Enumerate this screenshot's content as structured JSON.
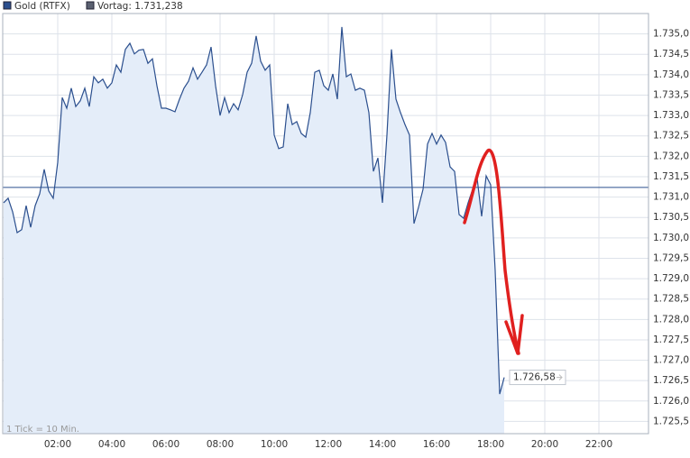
{
  "chart_data": {
    "type": "area",
    "series": [
      {
        "name": "Gold (RTFX)",
        "color": "#2b4f8e",
        "fill": "#e4edf9",
        "values": [
          1730.86,
          1730.97,
          1730.64,
          1730.13,
          1730.2,
          1730.79,
          1730.26,
          1730.79,
          1731.08,
          1731.68,
          1731.15,
          1730.97,
          1731.85,
          1733.44,
          1733.18,
          1733.67,
          1733.22,
          1733.36,
          1733.67,
          1733.22,
          1733.95,
          1733.8,
          1733.89,
          1733.67,
          1733.8,
          1734.24,
          1734.06,
          1734.62,
          1734.77,
          1734.51,
          1734.6,
          1734.62,
          1734.28,
          1734.39,
          1733.73,
          1733.18,
          1733.18,
          1733.14,
          1733.09,
          1733.4,
          1733.67,
          1733.84,
          1734.17,
          1733.89,
          1734.06,
          1734.24,
          1734.68,
          1733.73,
          1733.0,
          1733.44,
          1733.07,
          1733.29,
          1733.14,
          1733.51,
          1734.06,
          1734.28,
          1734.95,
          1734.33,
          1734.11,
          1734.24,
          1732.52,
          1732.19,
          1732.23,
          1733.29,
          1732.78,
          1732.85,
          1732.56,
          1732.47,
          1733.07,
          1734.06,
          1734.11,
          1733.73,
          1733.62,
          1734.02,
          1733.4,
          1735.17,
          1733.95,
          1734.02,
          1733.62,
          1733.67,
          1733.62,
          1733.07,
          1731.63,
          1731.96,
          1730.86,
          1732.52,
          1734.62,
          1733.4,
          1733.07,
          1732.78,
          1732.52,
          1730.35,
          1730.75,
          1731.19,
          1732.3,
          1732.56,
          1732.3,
          1732.52,
          1732.34,
          1731.74,
          1731.63,
          1730.57,
          1730.48,
          1730.86,
          1731.19,
          1731.46,
          1730.53,
          1731.52,
          1731.3,
          1729.2,
          1726.17,
          1726.58
        ],
        "value_labels": [
          null,
          null,
          null,
          null,
          null,
          null,
          null,
          null,
          null,
          null,
          null,
          null,
          null,
          null,
          null,
          null,
          null,
          null,
          null,
          null,
          null,
          null,
          null,
          null,
          null,
          null,
          null,
          null,
          null,
          null,
          null,
          null,
          null,
          null,
          null,
          null,
          null,
          null,
          null,
          null,
          null,
          null,
          null,
          null,
          null,
          null,
          null,
          null,
          null,
          null,
          null,
          null,
          null,
          null,
          null,
          null,
          null,
          null,
          null,
          null,
          null,
          null,
          null,
          null,
          null,
          null,
          null,
          null,
          null,
          null,
          null,
          null,
          null,
          null,
          null,
          null,
          null,
          null,
          null,
          null,
          null,
          null,
          null,
          null,
          null,
          null,
          null,
          null,
          null,
          null,
          null,
          null,
          null,
          null,
          null,
          null,
          null,
          null,
          null,
          null,
          null,
          null,
          null,
          null,
          null,
          null,
          null,
          null,
          null,
          null,
          null,
          "1.726,58"
        ]
      }
    ],
    "x": [
      0,
      10,
      20,
      30,
      40,
      50,
      60,
      70,
      80,
      90,
      100,
      110,
      120,
      130,
      140,
      150,
      160,
      170,
      180,
      190,
      200,
      210,
      220,
      230,
      240,
      250,
      260,
      270,
      280,
      290,
      300,
      310,
      320,
      330,
      340,
      350,
      360,
      370,
      380,
      390,
      400,
      410,
      420,
      430,
      440,
      450,
      460,
      470,
      480,
      490,
      500,
      510,
      520,
      530,
      540,
      550,
      560,
      570,
      580,
      590,
      600,
      610,
      620,
      630,
      640,
      650,
      660,
      670,
      680,
      690,
      700,
      710,
      720,
      730,
      740,
      750,
      760,
      770,
      780,
      790,
      800,
      810,
      820,
      830,
      840,
      850,
      860,
      870,
      880,
      890,
      900,
      910,
      920,
      930,
      940,
      950,
      960,
      970,
      980,
      990,
      1000,
      1010,
      1020,
      1030,
      1040,
      1050,
      1060,
      1070,
      1080,
      1090,
      1100,
      1110
    ],
    "reference": {
      "name": "Vortag: 1.731,238",
      "value": 1731.238,
      "color": "#2b4f8e",
      "legend_color": "#5a6070"
    },
    "annotation": "1 Tick = 10 Min.",
    "xlim": [
      0,
      1430
    ],
    "xticks": [
      {
        "value": 120,
        "label": "02:00"
      },
      {
        "value": 240,
        "label": "04:00"
      },
      {
        "value": 360,
        "label": "06:00"
      },
      {
        "value": 480,
        "label": "08:00"
      },
      {
        "value": 600,
        "label": "10:00"
      },
      {
        "value": 720,
        "label": "12:00"
      },
      {
        "value": 840,
        "label": "14:00"
      },
      {
        "value": 960,
        "label": "16:00"
      },
      {
        "value": 1080,
        "label": "18:00"
      },
      {
        "value": 1200,
        "label": "20:00"
      },
      {
        "value": 1320,
        "label": "22:00"
      }
    ],
    "ylim": [
      1725.2,
      1735.5
    ],
    "yticks": [
      {
        "value": 1725.5,
        "label": "1.725,5"
      },
      {
        "value": 1726,
        "label": "1.726,0"
      },
      {
        "value": 1726.5,
        "label": "1.726,5"
      },
      {
        "value": 1727,
        "label": "1.727,0"
      },
      {
        "value": 1727.5,
        "label": "1.727,5"
      },
      {
        "value": 1728,
        "label": "1.728,0"
      },
      {
        "value": 1728.5,
        "label": "1.728,5"
      },
      {
        "value": 1729,
        "label": "1.729,0"
      },
      {
        "value": 1729.5,
        "label": "1.729,5"
      },
      {
        "value": 1730,
        "label": "1.730,0"
      },
      {
        "value": 1730.5,
        "label": "1.730,5"
      },
      {
        "value": 1731,
        "label": "1.731,0"
      },
      {
        "value": 1731.5,
        "label": "1.731,5"
      },
      {
        "value": 1732,
        "label": "1.732,0"
      },
      {
        "value": 1732.5,
        "label": "1.732,5"
      },
      {
        "value": 1733,
        "label": "1.733,0"
      },
      {
        "value": 1733.5,
        "label": "1.733,5"
      },
      {
        "value": 1734,
        "label": "1.734,0"
      },
      {
        "value": 1734.5,
        "label": "1.734,5"
      },
      {
        "value": 1735,
        "label": "1.735,0"
      }
    ],
    "grid": true
  }
}
